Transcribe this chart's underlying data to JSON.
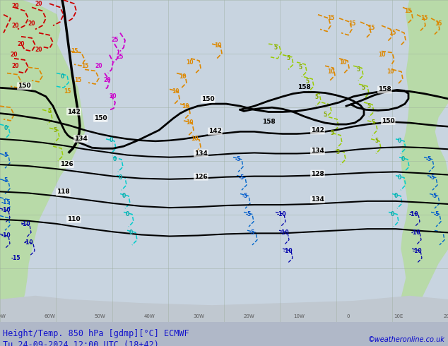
{
  "title_bottom": "Height/Temp. 850 hPa [gdmp][°C] ECMWF",
  "datetime_str": "Tu 24-09-2024 12:00 UTC (18+42)",
  "credit": "©weatheronline.co.uk",
  "bg_color": "#d0d8e0",
  "land_color_light": "#c8e6c0",
  "land_color_dark": "#a8d4a0",
  "fig_width": 6.34,
  "fig_height": 4.9,
  "dpi": 100,
  "bottom_label_color": "#1a1aff",
  "bottom_bar_color": "#cccccc",
  "grid_color": "#aaaaaa",
  "title_font_size": 8.5,
  "credit_font_size": 7,
  "label_font_size": 7
}
